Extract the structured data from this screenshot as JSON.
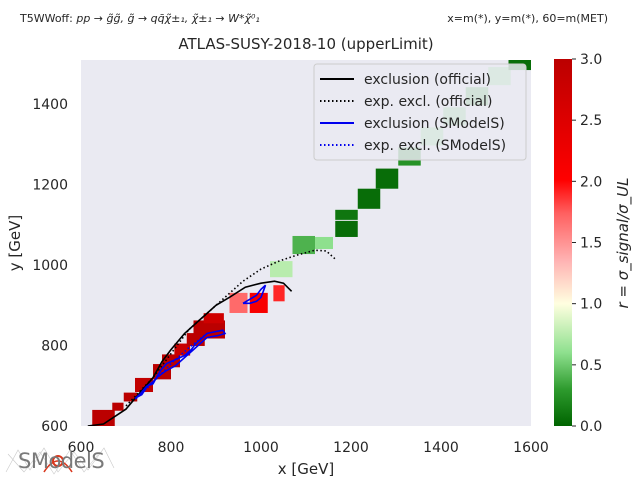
{
  "header": {
    "topology_label": "T5WWoff: ",
    "topology_formula": "pp → g̃g̃, g̃ → qq̄χ̃±₁, χ̃±₁ → W*χ̃⁰₁",
    "axes_mapping": "x=m(*), y=m(*), 60=m(MET)"
  },
  "logo": {
    "text": "SModelS"
  },
  "colors": {
    "plot_bg": "#eaeaf2",
    "official": "#000000",
    "smodels": "#0000ee",
    "cmap_low": "#006400",
    "cmap_mid": "#ffffe0",
    "cmap_high": "#bb0000"
  },
  "chart_data": {
    "type": "heatmap",
    "title": "ATLAS-SUSY-2018-10 (upperLimit)",
    "xlabel": "x [GeV]",
    "ylabel": "y [GeV]",
    "xlim": [
      600,
      1600
    ],
    "ylim": [
      600,
      1510
    ],
    "xticks": [
      600,
      800,
      1000,
      1200,
      1400,
      1600
    ],
    "yticks": [
      600,
      800,
      1000,
      1200,
      1400
    ],
    "grid": false,
    "legend_placement": "top-right",
    "colorbar": {
      "label": "r = σ_signal/σ_UL",
      "min": 0.0,
      "max": 3.0,
      "ticks": [
        "0.0",
        "0.5",
        "1.0",
        "1.5",
        "2.0",
        "2.5",
        "3.0"
      ]
    },
    "cells": [
      {
        "x": 650,
        "y": 620,
        "w": 50,
        "h": 40,
        "r": 3.0
      },
      {
        "x": 682,
        "y": 648,
        "w": 25,
        "h": 20,
        "r": 3.0
      },
      {
        "x": 710,
        "y": 672,
        "w": 30,
        "h": 22,
        "r": 3.0
      },
      {
        "x": 740,
        "y": 702,
        "w": 40,
        "h": 35,
        "r": 2.9
      },
      {
        "x": 780,
        "y": 735,
        "w": 40,
        "h": 38,
        "r": 3.0
      },
      {
        "x": 800,
        "y": 762,
        "w": 40,
        "h": 32,
        "r": 3.0
      },
      {
        "x": 825,
        "y": 790,
        "w": 35,
        "h": 30,
        "r": 2.8
      },
      {
        "x": 855,
        "y": 815,
        "w": 40,
        "h": 32,
        "r": 3.0
      },
      {
        "x": 885,
        "y": 840,
        "w": 70,
        "h": 45,
        "r": 3.0
      },
      {
        "x": 895,
        "y": 868,
        "w": 45,
        "h": 25,
        "r": 2.7
      },
      {
        "x": 950,
        "y": 906,
        "w": 40,
        "h": 50,
        "r": 1.7
      },
      {
        "x": 995,
        "y": 906,
        "w": 40,
        "h": 50,
        "r": 2.1
      },
      {
        "x": 1040,
        "y": 930,
        "w": 25,
        "h": 40,
        "r": 1.9
      },
      {
        "x": 1045,
        "y": 990,
        "w": 50,
        "h": 40,
        "r": 0.75
      },
      {
        "x": 1095,
        "y": 1050,
        "w": 50,
        "h": 45,
        "r": 0.4
      },
      {
        "x": 1140,
        "y": 1055,
        "w": 40,
        "h": 30,
        "r": 0.6
      },
      {
        "x": 1190,
        "y": 1090,
        "w": 50,
        "h": 40,
        "r": 0.05
      },
      {
        "x": 1190,
        "y": 1125,
        "w": 50,
        "h": 25,
        "r": 0.1
      },
      {
        "x": 1240,
        "y": 1165,
        "w": 50,
        "h": 50,
        "r": 0.05
      },
      {
        "x": 1280,
        "y": 1215,
        "w": 50,
        "h": 50,
        "r": 0.05
      },
      {
        "x": 1330,
        "y": 1270,
        "w": 50,
        "h": 45,
        "r": 0.25
      },
      {
        "x": 1380,
        "y": 1320,
        "w": 50,
        "h": 45,
        "r": 0.6
      },
      {
        "x": 1430,
        "y": 1370,
        "w": 50,
        "h": 45,
        "r": 0.55
      },
      {
        "x": 1480,
        "y": 1420,
        "w": 50,
        "h": 45,
        "r": 0.4
      },
      {
        "x": 1530,
        "y": 1470,
        "w": 50,
        "h": 45,
        "r": 0.6
      },
      {
        "x": 1575,
        "y": 1500,
        "w": 50,
        "h": 30,
        "r": 0.05
      }
    ],
    "series": [
      {
        "name": "exclusion (official)",
        "style": "solid",
        "color": "#000000",
        "points": [
          [
            615,
            600
          ],
          [
            650,
            605
          ],
          [
            700,
            642
          ],
          [
            725,
            675
          ],
          [
            760,
            720
          ],
          [
            780,
            760
          ],
          [
            800,
            790
          ],
          [
            830,
            830
          ],
          [
            860,
            860
          ],
          [
            880,
            880
          ],
          [
            900,
            900
          ],
          [
            930,
            920
          ],
          [
            965,
            945
          ],
          [
            1000,
            955
          ],
          [
            1030,
            960
          ],
          [
            1050,
            955
          ],
          [
            1068,
            935
          ]
        ]
      },
      {
        "name": "exp. excl. (official)",
        "style": "dotted",
        "color": "#000000",
        "points": [
          [
            700,
            650
          ],
          [
            760,
            720
          ],
          [
            800,
            780
          ],
          [
            840,
            840
          ],
          [
            880,
            880
          ],
          [
            920,
            920
          ],
          [
            960,
            960
          ],
          [
            1000,
            990
          ],
          [
            1040,
            1010
          ],
          [
            1080,
            1025
          ],
          [
            1120,
            1037
          ],
          [
            1145,
            1035
          ],
          [
            1165,
            1015
          ]
        ]
      },
      {
        "name": "exclusion (SModelS)",
        "style": "solid",
        "color": "#0000ee",
        "points": [
          [
            720,
            668
          ],
          [
            725,
            672
          ],
          [
            735,
            678
          ],
          [
            748,
            700
          ],
          [
            760,
            705
          ],
          [
            770,
            725
          ],
          [
            778,
            740
          ],
          [
            790,
            755
          ],
          [
            810,
            765
          ],
          [
            830,
            775
          ],
          [
            845,
            790
          ],
          [
            855,
            805
          ],
          [
            865,
            815
          ],
          [
            880,
            830
          ],
          [
            900,
            835
          ],
          [
            915,
            838
          ],
          [
            920,
            830
          ],
          [
            905,
            825
          ],
          [
            880,
            820
          ],
          [
            865,
            805
          ],
          [
            850,
            790
          ],
          [
            830,
            770
          ],
          [
            810,
            750
          ],
          [
            790,
            738
          ],
          [
            780,
            730
          ],
          [
            770,
            722
          ],
          [
            760,
            710
          ],
          [
            745,
            698
          ],
          [
            732,
            680
          ],
          [
            720,
            668
          ]
        ]
      },
      {
        "name": "exclusion (SModelS)",
        "style": "solid",
        "color": "#0000ee",
        "points": [
          [
            960,
            905
          ],
          [
            975,
            915
          ],
          [
            990,
            925
          ],
          [
            1000,
            940
          ],
          [
            1010,
            950
          ],
          [
            1005,
            935
          ],
          [
            1000,
            920
          ],
          [
            990,
            910
          ],
          [
            975,
            905
          ],
          [
            960,
            905
          ]
        ]
      },
      {
        "name": "exp. excl. (SModelS)",
        "style": "dotted",
        "color": "#0000ee",
        "points": [
          [
            722,
            668
          ],
          [
            760,
            708
          ],
          [
            800,
            755
          ],
          [
            840,
            795
          ],
          [
            880,
            830
          ]
        ]
      }
    ],
    "legend": [
      {
        "label": "exclusion (official)",
        "style": "solid",
        "color": "#000000"
      },
      {
        "label": "exp. excl. (official)",
        "style": "dotted",
        "color": "#000000"
      },
      {
        "label": "exclusion (SModelS)",
        "style": "solid",
        "color": "#0000ee"
      },
      {
        "label": "exp. excl. (SModelS)",
        "style": "dotted",
        "color": "#0000ee"
      }
    ]
  }
}
